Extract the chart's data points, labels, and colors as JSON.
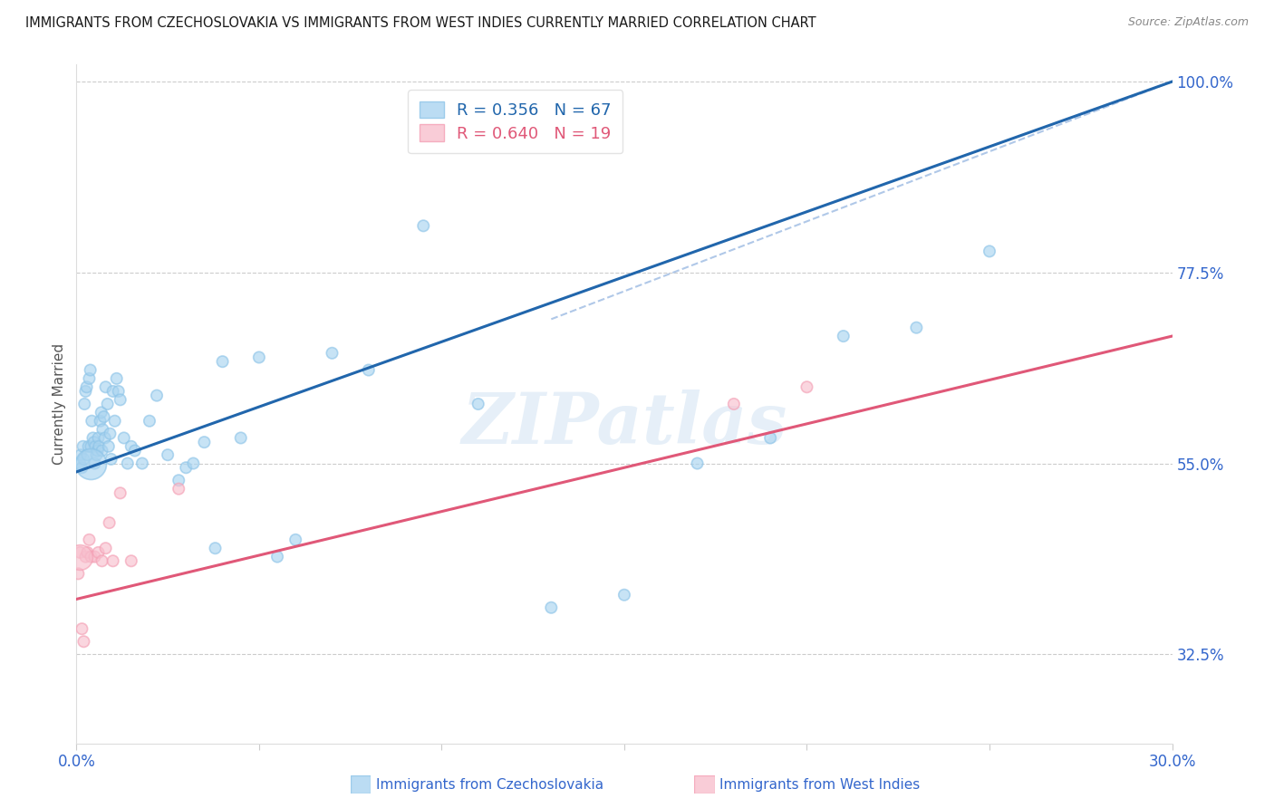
{
  "title": "IMMIGRANTS FROM CZECHOSLOVAKIA VS IMMIGRANTS FROM WEST INDIES CURRENTLY MARRIED CORRELATION CHART",
  "source": "Source: ZipAtlas.com",
  "xlabel_blue": "Immigrants from Czechoslovakia",
  "xlabel_pink": "Immigrants from West Indies",
  "ylabel": "Currently Married",
  "legend_blue_r": "0.356",
  "legend_blue_n": "67",
  "legend_pink_r": "0.640",
  "legend_pink_n": "19",
  "xmin": 0.0,
  "xmax": 30.0,
  "ymin": 22.0,
  "ymax": 102.0,
  "yticks": [
    32.5,
    55.0,
    77.5,
    100.0
  ],
  "ytick_labels": [
    "32.5%",
    "55.0%",
    "77.5%",
    "100.0%"
  ],
  "xtick_positions": [
    0,
    5,
    10,
    15,
    20,
    25,
    30
  ],
  "xtick_labels": [
    "0.0%",
    "",
    "",
    "",
    "",
    "",
    "30.0%"
  ],
  "color_blue": "#8dc4e8",
  "color_blue_fill": "#aad4f0",
  "color_blue_line": "#2166ac",
  "color_pink": "#f4a0b5",
  "color_pink_fill": "#f8c0ce",
  "color_pink_line": "#e05878",
  "color_dashed": "#b0c8e8",
  "background_color": "#ffffff",
  "title_color": "#1a1a1a",
  "axis_label_color": "#3366cc",
  "watermark": "ZIPatlas",
  "blue_scatter_x": [
    0.1,
    0.12,
    0.15,
    0.18,
    0.2,
    0.22,
    0.25,
    0.28,
    0.3,
    0.33,
    0.35,
    0.38,
    0.4,
    0.42,
    0.45,
    0.48,
    0.5,
    0.52,
    0.55,
    0.58,
    0.6,
    0.62,
    0.65,
    0.68,
    0.7,
    0.72,
    0.75,
    0.78,
    0.8,
    0.85,
    0.88,
    0.92,
    0.95,
    1.0,
    1.05,
    1.1,
    1.15,
    1.2,
    1.3,
    1.4,
    1.5,
    1.6,
    1.8,
    2.0,
    2.2,
    2.5,
    2.8,
    3.0,
    3.2,
    3.5,
    3.8,
    4.0,
    4.5,
    5.0,
    5.5,
    6.0,
    7.0,
    8.0,
    9.5,
    11.0,
    13.0,
    15.0,
    17.0,
    19.0,
    21.0,
    23.0,
    25.0
  ],
  "blue_scatter_y": [
    55.0,
    56.0,
    54.5,
    57.0,
    55.5,
    62.0,
    63.5,
    64.0,
    56.0,
    57.0,
    65.0,
    66.0,
    57.0,
    60.0,
    58.0,
    57.5,
    55.0,
    57.0,
    56.0,
    56.5,
    58.0,
    57.0,
    60.0,
    61.0,
    56.5,
    59.0,
    60.5,
    58.0,
    64.0,
    62.0,
    57.0,
    58.5,
    55.5,
    63.5,
    60.0,
    65.0,
    63.5,
    62.5,
    58.0,
    55.0,
    57.0,
    56.5,
    55.0,
    60.0,
    63.0,
    56.0,
    53.0,
    54.5,
    55.0,
    57.5,
    45.0,
    67.0,
    58.0,
    67.5,
    44.0,
    46.0,
    68.0,
    66.0,
    83.0,
    62.0,
    38.0,
    39.5,
    55.0,
    58.0,
    70.0,
    71.0,
    80.0
  ],
  "blue_scatter_sizes": [
    80,
    80,
    80,
    80,
    80,
    80,
    80,
    80,
    80,
    80,
    80,
    80,
    80,
    80,
    80,
    80,
    80,
    80,
    80,
    80,
    80,
    80,
    80,
    80,
    80,
    80,
    80,
    80,
    80,
    80,
    80,
    80,
    80,
    80,
    80,
    80,
    80,
    80,
    80,
    80,
    80,
    80,
    80,
    80,
    80,
    80,
    80,
    80,
    80,
    80,
    80,
    80,
    80,
    80,
    80,
    80,
    80,
    80,
    80,
    80,
    80,
    80,
    80,
    80,
    80,
    80,
    80
  ],
  "pink_scatter_x": [
    0.05,
    0.1,
    0.15,
    0.2,
    0.25,
    0.3,
    0.35,
    0.4,
    0.5,
    0.6,
    0.7,
    0.8,
    0.9,
    1.0,
    1.2,
    1.5,
    2.8,
    18.0,
    20.0
  ],
  "pink_scatter_y": [
    42.0,
    44.5,
    35.5,
    34.0,
    44.0,
    44.5,
    46.0,
    44.0,
    44.0,
    44.5,
    43.5,
    45.0,
    48.0,
    43.5,
    51.5,
    43.5,
    52.0,
    62.0,
    64.0
  ],
  "pink_scatter_sizes": [
    80,
    80,
    80,
    80,
    80,
    80,
    80,
    80,
    80,
    80,
    80,
    80,
    80,
    80,
    80,
    80,
    80,
    80,
    80
  ],
  "large_blue_x": [
    0.4
  ],
  "large_blue_y": [
    55.0
  ],
  "large_blue_size": [
    600
  ],
  "large_pink_x": [
    0.08
  ],
  "large_pink_y": [
    44.0
  ],
  "large_pink_size": [
    400
  ],
  "blue_line_x0": 0.0,
  "blue_line_x1": 30.0,
  "blue_line_y0": 54.0,
  "blue_line_y1": 100.0,
  "pink_line_x0": 0.0,
  "pink_line_x1": 30.0,
  "pink_line_y0": 39.0,
  "pink_line_y1": 70.0,
  "dashed_line_x0": 13.0,
  "dashed_line_x1": 30.0,
  "dashed_line_y0": 72.0,
  "dashed_line_y1": 100.0
}
